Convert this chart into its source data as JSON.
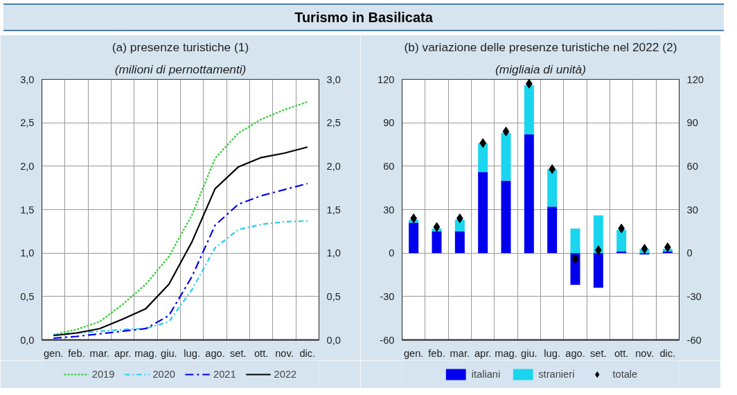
{
  "chart_data": [
    {
      "type": "line",
      "title": "(a) presenze turistiche (1)",
      "subtitle": "(milioni di pernottamenti)",
      "annotations": [
        "Turismo in Basilicata"
      ],
      "categories": [
        "gen.",
        "feb.",
        "mar.",
        "apr.",
        "mag.",
        "giu.",
        "lug.",
        "ago.",
        "set.",
        "ott.",
        "nov.",
        "dic."
      ],
      "series": [
        {
          "name": "2019",
          "color": "#33cc33",
          "line_style": "dashed",
          "values": [
            0.06,
            0.12,
            0.21,
            0.41,
            0.64,
            0.96,
            1.44,
            2.09,
            2.38,
            2.54,
            2.65,
            2.74
          ]
        },
        {
          "name": "2020",
          "color": "#22ccee",
          "line_style": "dashdot",
          "values": [
            0.06,
            0.08,
            0.1,
            0.12,
            0.13,
            0.21,
            0.58,
            1.06,
            1.27,
            1.33,
            1.36,
            1.37
          ]
        },
        {
          "name": "2021",
          "color": "#0000ee",
          "line_style": "longdashdot",
          "values": [
            0.02,
            0.04,
            0.07,
            0.1,
            0.13,
            0.28,
            0.73,
            1.32,
            1.56,
            1.66,
            1.73,
            1.8
          ]
        },
        {
          "name": "2022",
          "color": "#000000",
          "line_style": "solid",
          "values": [
            0.05,
            0.08,
            0.13,
            0.24,
            0.36,
            0.64,
            1.13,
            1.74,
            1.99,
            2.1,
            2.15,
            2.22
          ]
        }
      ],
      "ylim": [
        0,
        3
      ],
      "yticks": [
        {
          "value": 0,
          "label": "0,0"
        },
        {
          "value": 0.5,
          "label": "0,5"
        },
        {
          "value": 1,
          "label": "1,0"
        },
        {
          "value": 1.5,
          "label": "1,5"
        },
        {
          "value": 2,
          "label": "2,0"
        },
        {
          "value": 2.5,
          "label": "2,5"
        },
        {
          "value": 3,
          "label": "3,0"
        }
      ],
      "y2lim": [
        0,
        3
      ],
      "y2ticks": [
        {
          "value": 0,
          "label": "0,0"
        },
        {
          "value": 0.5,
          "label": "0,5"
        },
        {
          "value": 1,
          "label": "1,0"
        },
        {
          "value": 1.5,
          "label": "1,5"
        },
        {
          "value": 2,
          "label": "2,0"
        },
        {
          "value": 2.5,
          "label": "2,5"
        },
        {
          "value": 3,
          "label": "3,0"
        }
      ],
      "grid": true,
      "legend": "bottom"
    },
    {
      "type": "bar",
      "stacked": true,
      "title": "(b) variazione delle presenze turistiche nel 2022 (2)",
      "subtitle": "(migliaia di unità)",
      "categories": [
        "gen.",
        "feb.",
        "mar.",
        "apr.",
        "mag.",
        "giu.",
        "lug.",
        "ago.",
        "set.",
        "ott.",
        "nov.",
        "dic."
      ],
      "series": [
        {
          "name": "italiani",
          "color": "#0000ee",
          "values": [
            21,
            15,
            15,
            56,
            50,
            82,
            32,
            -22,
            -24,
            1,
            -1,
            1
          ]
        },
        {
          "name": "stranieri",
          "color": "#1ad5ee",
          "values": [
            2,
            2,
            8,
            20,
            33,
            34,
            26,
            17,
            26,
            15,
            3,
            2
          ]
        },
        {
          "name": "totale",
          "type": "scatter",
          "marker": "diamond",
          "color": "#000000",
          "x": [
            "gen.",
            "feb.",
            "mar.",
            "apr.",
            "mag.",
            "giu.",
            "lug.",
            "ago.",
            "set.",
            "ott.",
            "nov.",
            "dic."
          ],
          "values": [
            24,
            18,
            24,
            76,
            84,
            117,
            58,
            -4,
            2,
            17,
            3,
            4
          ]
        }
      ],
      "ylim": [
        -60,
        120
      ],
      "yticks": [
        -60,
        -30,
        0,
        30,
        60,
        90,
        120
      ],
      "y2lim": [
        -60,
        120
      ],
      "y2ticks": [
        -60,
        -30,
        0,
        30,
        60,
        90,
        120
      ],
      "grid": true,
      "legend": "bottom"
    }
  ]
}
